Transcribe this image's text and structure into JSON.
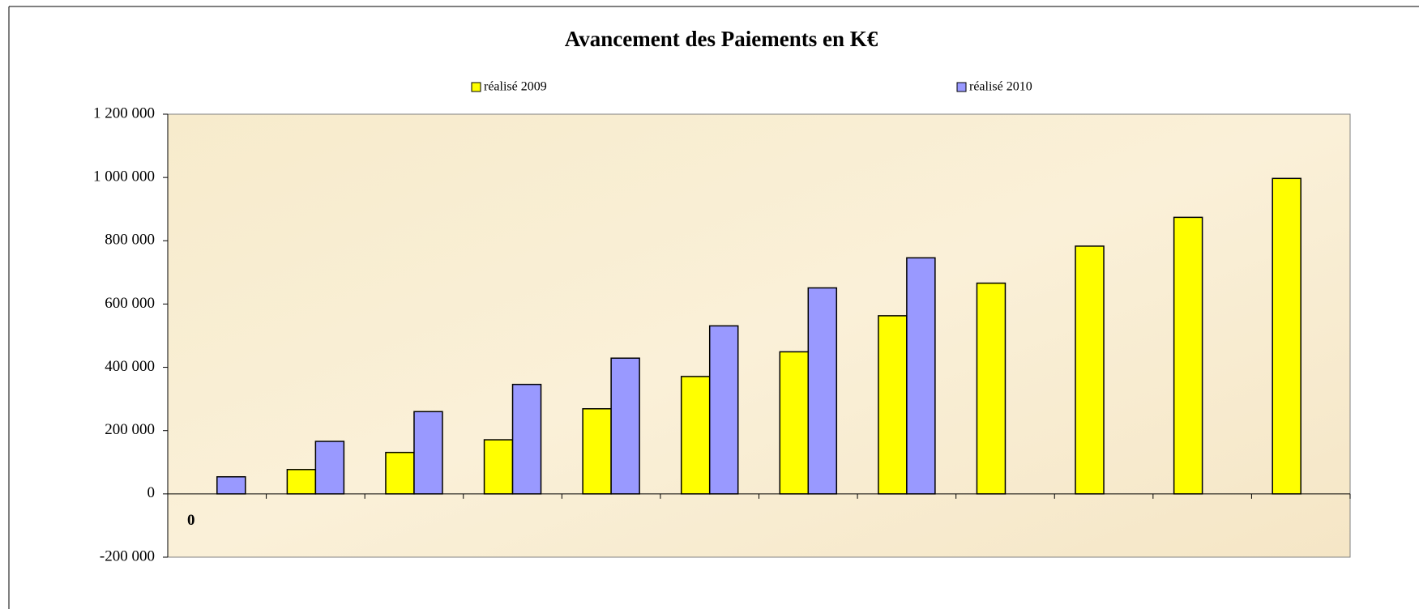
{
  "chart_data": {
    "type": "bar",
    "title": "Avancement des Paiements en K€",
    "categories": [
      "0",
      null,
      null,
      null,
      null,
      null,
      null,
      null,
      null,
      null,
      null,
      null
    ],
    "series": [
      {
        "name": "réalisé 2009",
        "color": "#ffff00",
        "values": [
          null,
          77000,
          131000,
          171000,
          269000,
          371000,
          449000,
          563000,
          666000,
          783000,
          874000,
          997000
        ]
      },
      {
        "name": "réalisé 2010",
        "color": "#9999ff",
        "values": [
          54000,
          166000,
          260000,
          346000,
          429000,
          531000,
          651000,
          746000,
          null,
          null,
          null,
          null
        ]
      }
    ],
    "ylim": [
      -200000,
      1200000
    ],
    "yticks": [
      {
        "value": -200000,
        "label": "-200 000"
      },
      0,
      {
        "value": 200000,
        "label": "200 000"
      },
      {
        "value": 400000,
        "label": "400 000"
      },
      {
        "value": 600000,
        "label": "600 000"
      },
      {
        "value": 800000,
        "label": "800 000"
      },
      {
        "value": 1000000,
        "label": "1 000 000"
      },
      {
        "value": 1200000,
        "label": "1 200 000"
      }
    ],
    "legend": "top",
    "grid": false
  }
}
